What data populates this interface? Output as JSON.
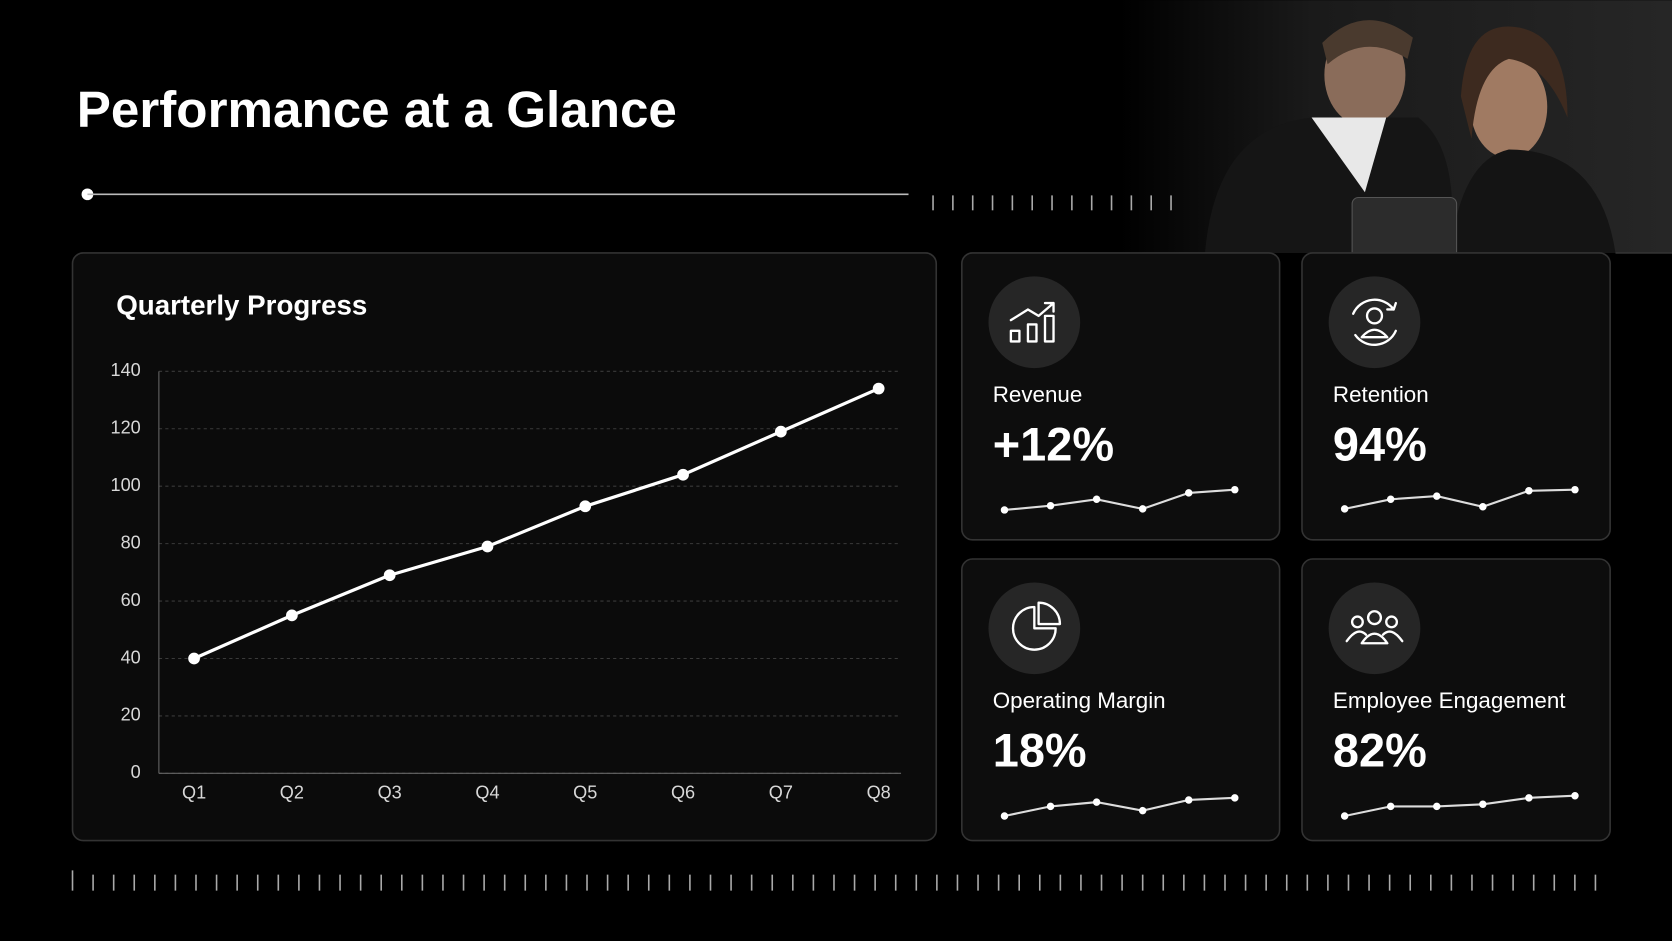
{
  "title": "Performance at a Glance",
  "chart_data": {
    "type": "line",
    "title": "Quarterly Progress",
    "categories": [
      "Q1",
      "Q2",
      "Q3",
      "Q4",
      "Q5",
      "Q6",
      "Q7",
      "Q8"
    ],
    "values": [
      40,
      55,
      69,
      79,
      93,
      104,
      119,
      134
    ],
    "color": "#ffffff",
    "ylim": [
      0,
      140
    ],
    "yticks": [
      0,
      20,
      40,
      60,
      80,
      100,
      120,
      140
    ],
    "grid": true
  },
  "cards": [
    {
      "label": "Revenue",
      "value": "+12%",
      "sparkline": [
        5,
        9,
        15,
        6,
        21,
        24
      ]
    },
    {
      "label": "Retention",
      "value": "94%",
      "sparkline": [
        6,
        15,
        18,
        8,
        23,
        24
      ]
    },
    {
      "label": "Operating Margin",
      "value": "18%",
      "sparkline": [
        5,
        14,
        18,
        10,
        20,
        22
      ]
    },
    {
      "label": "Employee Engagement",
      "value": "82%",
      "sparkline": [
        5,
        14,
        14,
        16,
        22,
        24
      ]
    }
  ]
}
